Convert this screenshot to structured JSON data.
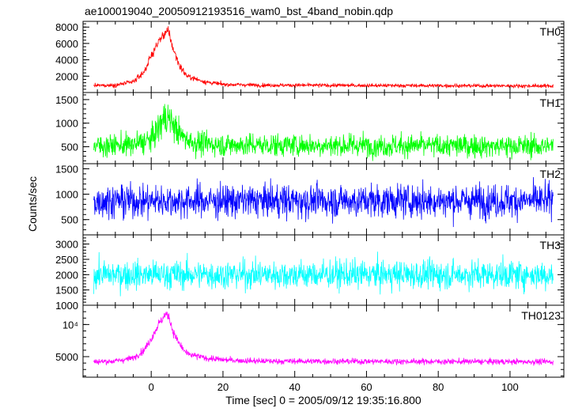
{
  "title": "ae100019040_20050912193516_wam0_bst_4band_nobin.qdp",
  "xlabel": "Time [sec] 0 = 2005/09/12 19:35:16.800",
  "ylabel": "Counts/sec",
  "chart_data": {
    "type": "line",
    "title": "ae100019040_20050912193516_wam0_bst_4band_nobin.qdp",
    "xlabel": "Time [sec] 0 = 2005/09/12 19:35:16.800",
    "ylabel": "Counts/sec",
    "xlim": [
      -19,
      115
    ],
    "x_range": [
      -16,
      112
    ],
    "x_ticks": [
      0,
      20,
      40,
      60,
      80,
      100
    ],
    "x_tick_labels": [
      "0",
      "20",
      "40",
      "60",
      "80",
      "100"
    ],
    "grid": false,
    "legend": "none",
    "series": [
      {
        "name": "TH0",
        "color": "#ff0000",
        "ylim": [
          0,
          8700
        ],
        "y_ticks": [
          2000,
          4000,
          6000,
          8000
        ],
        "y_tick_labels": [
          "2000",
          "4000",
          "6000",
          "8000"
        ],
        "baseline": 850,
        "noise": 160,
        "peak": {
          "x": 4,
          "value": 7200,
          "rise_width": 2.5,
          "decay_width": 3
        },
        "envelope_x": [
          -16,
          -10,
          -5,
          -2,
          0,
          2,
          4,
          5,
          6,
          8,
          10,
          15,
          20,
          30,
          112
        ],
        "envelope_y": [
          850,
          900,
          1300,
          2500,
          4500,
          6200,
          7400,
          7200,
          5500,
          3200,
          2000,
          1300,
          1000,
          900,
          800
        ]
      },
      {
        "name": "TH1",
        "color": "#00ff00",
        "ylim": [
          140,
          1650
        ],
        "y_ticks": [
          500,
          1000,
          1500
        ],
        "y_tick_labels": [
          "500",
          "1000",
          "1500"
        ],
        "baseline": 520,
        "noise": 170,
        "envelope_x": [
          -16,
          -5,
          0,
          2,
          4,
          6,
          8,
          12,
          20,
          112
        ],
        "envelope_y": [
          520,
          540,
          650,
          900,
          1150,
          1000,
          750,
          580,
          540,
          510
        ]
      },
      {
        "name": "TH2",
        "color": "#0000ff",
        "ylim": [
          200,
          1600
        ],
        "y_ticks": [
          500,
          1000,
          1500
        ],
        "y_tick_labels": [
          "500",
          "1000",
          "1500"
        ],
        "baseline": 870,
        "noise": 230
      },
      {
        "name": "TH3",
        "color": "#00ffff",
        "ylim": [
          1000,
          3300
        ],
        "y_ticks": [
          1000,
          1500,
          2000,
          2500,
          3000
        ],
        "y_tick_labels": [
          "1000",
          "1500",
          "2000",
          "2500",
          "3000"
        ],
        "baseline": 2000,
        "noise": 330
      },
      {
        "name": "TH0123",
        "color": "#ff00ff",
        "ylim": [
          1800,
          13000
        ],
        "y_ticks": [
          5000,
          10000
        ],
        "y_tick_labels": [
          "5000",
          "10⁴"
        ],
        "baseline": 4200,
        "noise": 320,
        "envelope_x": [
          -16,
          -10,
          -5,
          -2,
          0,
          2,
          4,
          5,
          6,
          8,
          10,
          15,
          20,
          30,
          112
        ],
        "envelope_y": [
          4200,
          4300,
          4800,
          6000,
          7800,
          10000,
          11600,
          11200,
          9000,
          6800,
          5400,
          4800,
          4500,
          4300,
          4200
        ]
      }
    ]
  }
}
